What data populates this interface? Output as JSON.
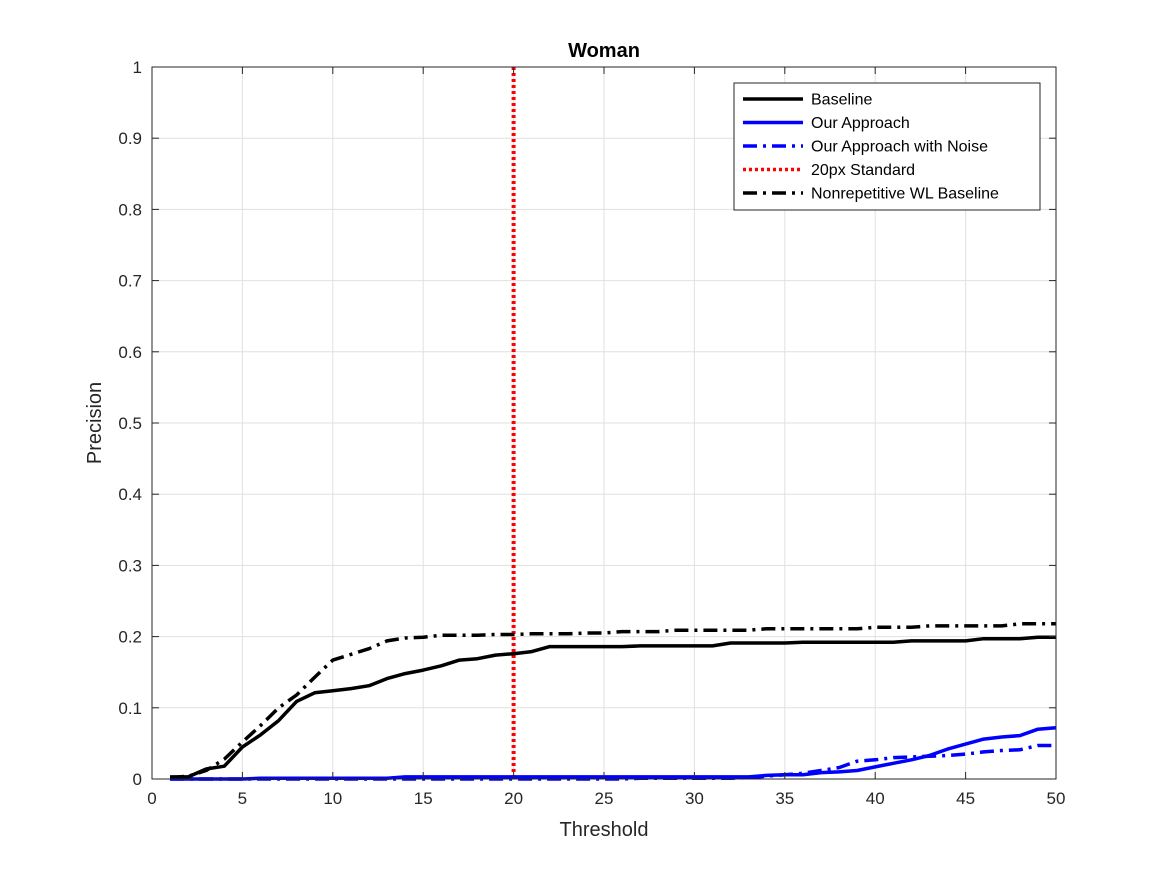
{
  "chart_data": {
    "type": "line",
    "title": "Woman",
    "xlabel": "Threshold",
    "ylabel": "Precision",
    "xlim": [
      0,
      50
    ],
    "ylim": [
      0,
      1
    ],
    "xticks": [
      0,
      5,
      10,
      15,
      20,
      25,
      30,
      35,
      40,
      45,
      50
    ],
    "yticks": [
      0,
      0.1,
      0.2,
      0.3,
      0.4,
      0.5,
      0.6,
      0.7,
      0.8,
      0.9,
      1
    ],
    "xtick_labels": [
      "0",
      "5",
      "10",
      "15",
      "20",
      "25",
      "30",
      "35",
      "40",
      "45",
      "50"
    ],
    "ytick_labels": [
      "0",
      "0.1",
      "0.2",
      "0.3",
      "0.4",
      "0.5",
      "0.6",
      "0.7",
      "0.8",
      "0.9",
      "1"
    ],
    "grid": true,
    "legend_position": "top-right",
    "x": [
      1,
      2,
      3,
      4,
      5,
      6,
      7,
      8,
      9,
      10,
      11,
      12,
      13,
      14,
      15,
      16,
      17,
      18,
      19,
      20,
      21,
      22,
      23,
      24,
      25,
      26,
      27,
      28,
      29,
      30,
      31,
      32,
      33,
      34,
      35,
      36,
      37,
      38,
      39,
      40,
      41,
      42,
      43,
      44,
      45,
      46,
      47,
      48,
      49,
      50
    ],
    "series": [
      {
        "name": "Baseline",
        "color": "#000000",
        "style": "solid",
        "values": [
          0.003,
          0.003,
          0.014,
          0.018,
          0.045,
          0.062,
          0.082,
          0.109,
          0.121,
          0.124,
          0.127,
          0.131,
          0.141,
          0.148,
          0.153,
          0.159,
          0.167,
          0.169,
          0.174,
          0.176,
          0.179,
          0.186,
          0.186,
          0.186,
          0.186,
          0.186,
          0.187,
          0.187,
          0.187,
          0.187,
          0.187,
          0.191,
          0.191,
          0.191,
          0.191,
          0.192,
          0.192,
          0.192,
          0.192,
          0.192,
          0.192,
          0.194,
          0.194,
          0.194,
          0.194,
          0.197,
          0.197,
          0.197,
          0.199,
          0.199
        ]
      },
      {
        "name": "Our Approach",
        "color": "#0000ff",
        "style": "solid",
        "values": [
          0,
          0,
          0,
          0,
          0,
          0.001,
          0.001,
          0.001,
          0.001,
          0.001,
          0.001,
          0.001,
          0.001,
          0.003,
          0.003,
          0.003,
          0.003,
          0.003,
          0.003,
          0.003,
          0.003,
          0.003,
          0.003,
          0.003,
          0.003,
          0.003,
          0.003,
          0.003,
          0.003,
          0.003,
          0.003,
          0.003,
          0.003,
          0.005,
          0.006,
          0.006,
          0.009,
          0.01,
          0.012,
          0.017,
          0.022,
          0.027,
          0.033,
          0.042,
          0.049,
          0.056,
          0.059,
          0.061,
          0.07,
          0.072
        ]
      },
      {
        "name": "Our Approach with Noise",
        "color": "#0000ff",
        "style": "dashdot",
        "values": [
          0,
          0,
          0,
          0,
          0,
          0,
          0,
          0,
          0,
          0,
          0,
          0,
          0,
          0,
          0,
          0,
          0,
          0,
          0,
          0,
          0,
          0,
          0,
          0,
          0,
          0,
          0.001,
          0.001,
          0.001,
          0.001,
          0.001,
          0.001,
          0.002,
          0.004,
          0.006,
          0.008,
          0.012,
          0.016,
          0.025,
          0.027,
          0.03,
          0.031,
          0.032,
          0.033,
          0.035,
          0.038,
          0.04,
          0.041,
          0.047,
          0.047
        ]
      },
      {
        "name": "20px Standard",
        "color": "#ff0000",
        "style": "dotted",
        "vertical_x": 20
      },
      {
        "name": "Nonrepetitive WL Baseline",
        "color": "#000000",
        "style": "dashdot",
        "values": [
          0.002,
          0.004,
          0.012,
          0.028,
          0.052,
          0.075,
          0.1,
          0.118,
          0.143,
          0.167,
          0.175,
          0.183,
          0.194,
          0.198,
          0.199,
          0.202,
          0.202,
          0.202,
          0.203,
          0.203,
          0.204,
          0.204,
          0.204,
          0.205,
          0.205,
          0.207,
          0.207,
          0.207,
          0.209,
          0.209,
          0.209,
          0.209,
          0.209,
          0.211,
          0.211,
          0.211,
          0.211,
          0.211,
          0.211,
          0.213,
          0.213,
          0.213,
          0.215,
          0.215,
          0.215,
          0.215,
          0.215,
          0.218,
          0.218,
          0.218
        ]
      }
    ]
  }
}
